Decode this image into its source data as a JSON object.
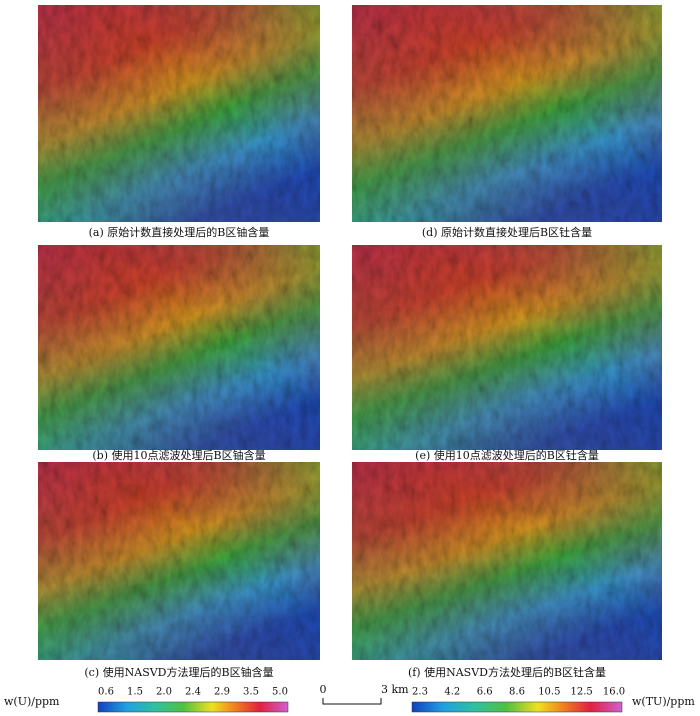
{
  "panels": [
    {
      "caption": "(a) 原始计数直接处理后的B区铀含量"
    },
    {
      "caption": "(b) 使用10点滤波处理后B区铀含量"
    },
    {
      "caption": "(c) 使用NASVD方法理后的B区铀含量"
    },
    {
      "caption": "(d) 原始计数直接处理后B区钍含量"
    },
    {
      "caption": "(e) 使用10点滤波处理后的B区钍含量"
    },
    {
      "caption": "(f) 使用NASVD方法处理后的B区钍含量"
    }
  ],
  "legend_u": {
    "label": "w(U)/ppm",
    "ticks": [
      "0.6",
      "1.5",
      "2.0",
      "2.4",
      "2.9",
      "3.5",
      "5.0"
    ]
  },
  "legend_tu": {
    "label": "w(TU)/ppm",
    "ticks": [
      "2.3",
      "4.2",
      "6.6",
      "8.6",
      "10.5",
      "12.5",
      "16.0"
    ]
  },
  "scale_bar": {
    "start": "0",
    "end": "3 km"
  }
}
